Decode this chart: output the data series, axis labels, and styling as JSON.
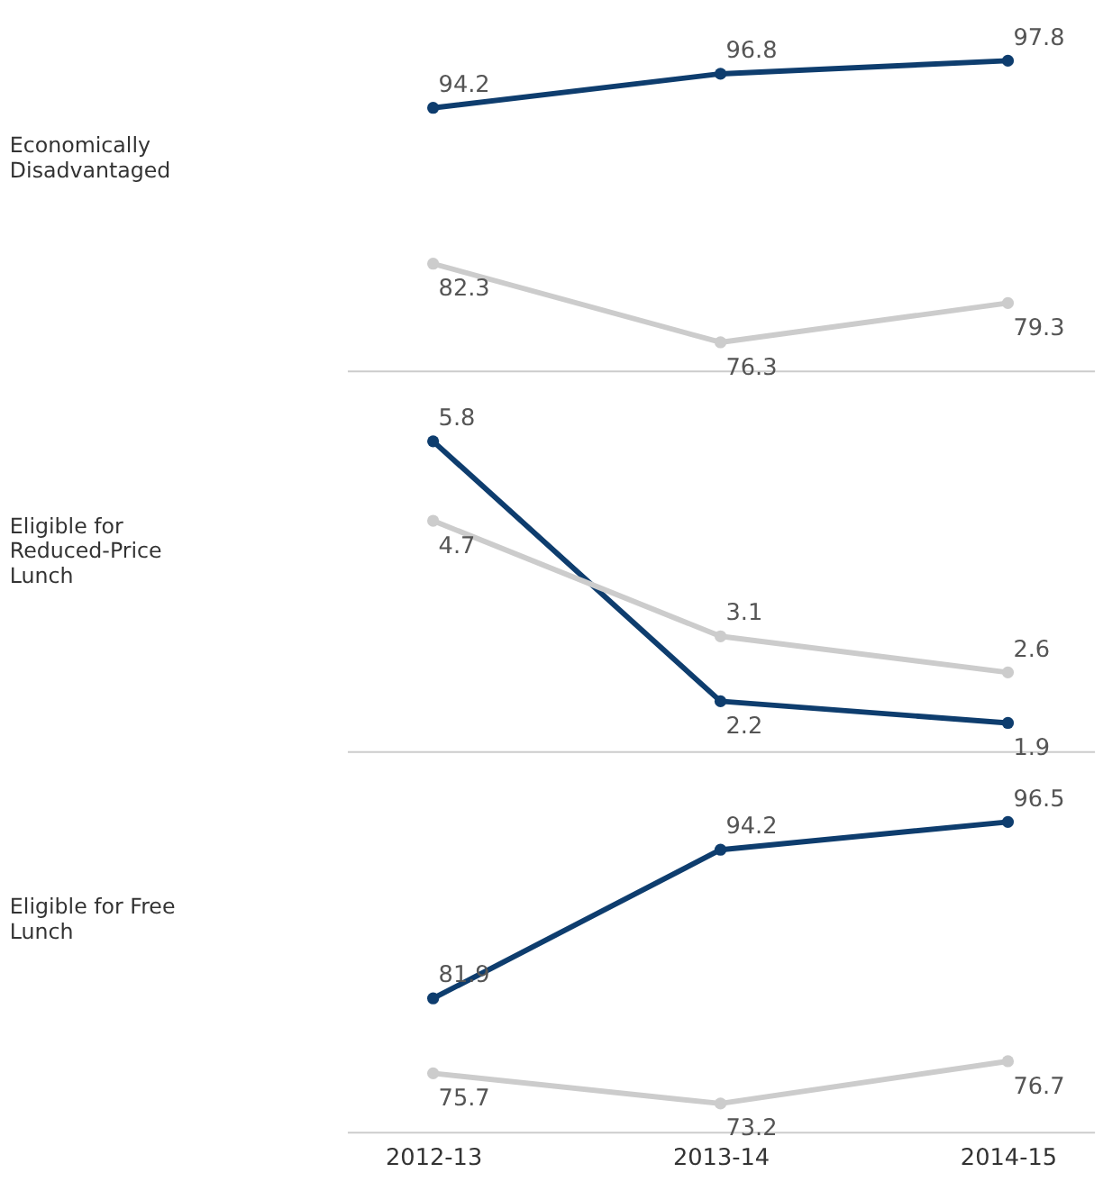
{
  "chart_data": [
    {
      "type": "line",
      "ylabel": "Economically Disadvantaged",
      "categories": [
        "2012-13",
        "2013-14",
        "2014-15"
      ],
      "series": [
        {
          "color": "#0e3d6e",
          "values": [
            94.2,
            96.8,
            97.8
          ]
        },
        {
          "color": "#cccccc",
          "values": [
            82.3,
            76.3,
            79.3
          ]
        }
      ],
      "data_labels": true,
      "marker": "circle",
      "grid": false,
      "legend": false,
      "tick_labels": false
    },
    {
      "type": "line",
      "ylabel": "Eligible for Reduced-Price Lunch",
      "categories": [
        "2012-13",
        "2013-14",
        "2014-15"
      ],
      "series": [
        {
          "color": "#0e3d6e",
          "values": [
            5.8,
            2.2,
            1.9
          ]
        },
        {
          "color": "#cccccc",
          "values": [
            4.7,
            3.1,
            2.6
          ]
        }
      ],
      "data_labels": true,
      "marker": "circle",
      "grid": false,
      "legend": false,
      "tick_labels": false
    },
    {
      "type": "line",
      "ylabel": "Eligible for Free Lunch",
      "categories": [
        "2012-13",
        "2013-14",
        "2014-15"
      ],
      "series": [
        {
          "color": "#0e3d6e",
          "values": [
            81.9,
            94.2,
            96.5
          ]
        },
        {
          "color": "#cccccc",
          "values": [
            75.7,
            73.2,
            76.7
          ]
        }
      ],
      "data_labels": true,
      "marker": "circle",
      "grid": false,
      "legend": false,
      "tick_labels": "x"
    }
  ]
}
